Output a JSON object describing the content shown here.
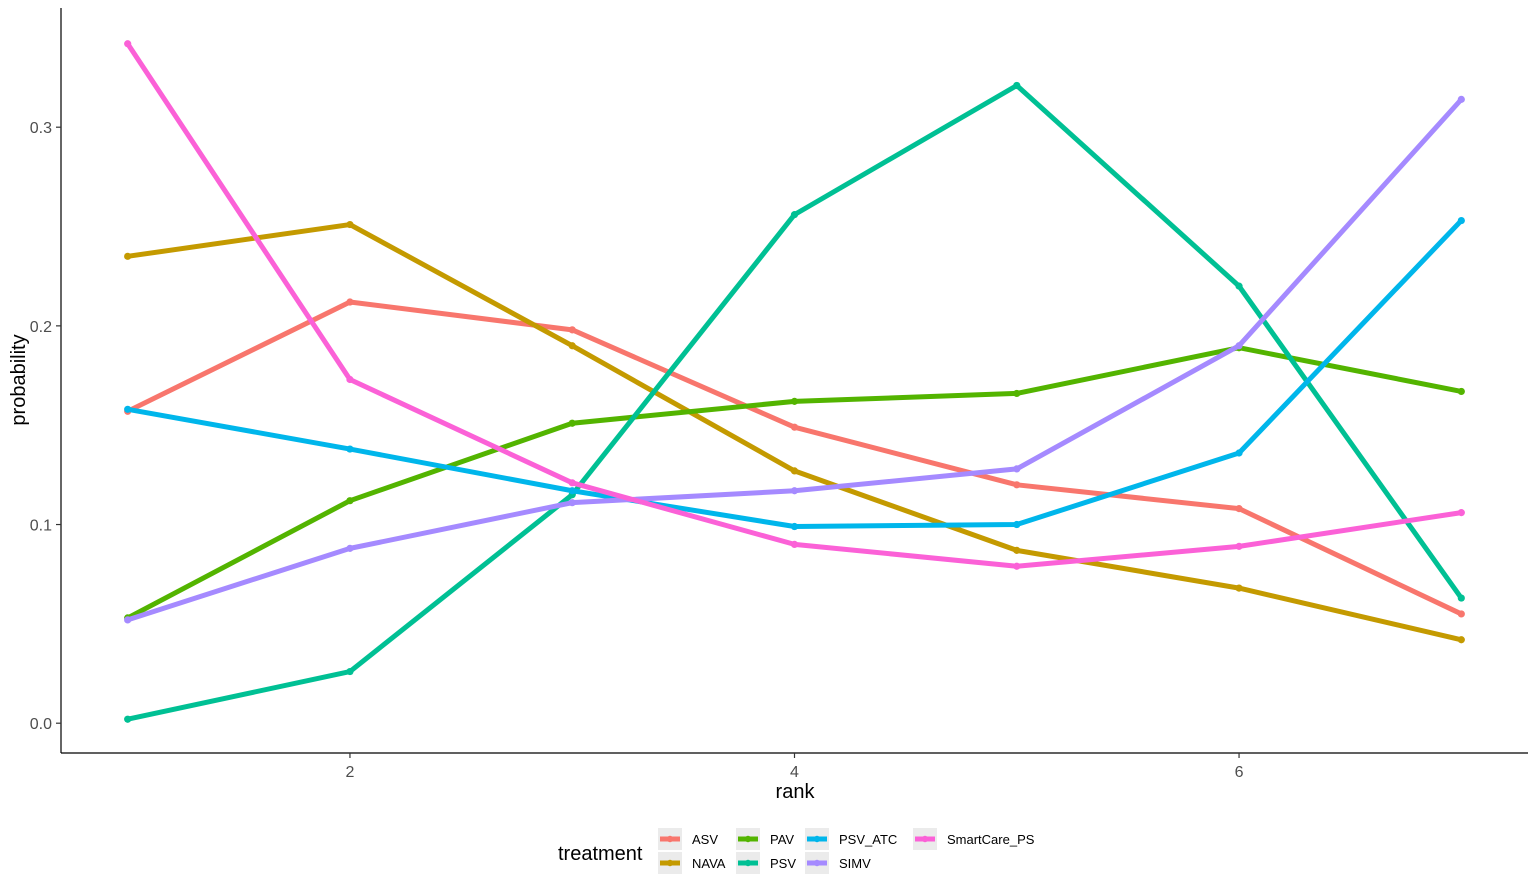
{
  "chart_data": {
    "type": "line",
    "xlabel": "rank",
    "ylabel": "probability",
    "x": [
      1,
      2,
      3,
      4,
      5,
      6,
      7
    ],
    "xlim": [
      0.7,
      7.3
    ],
    "ylim": [
      -0.015,
      0.36
    ],
    "x_ticks": [
      2,
      4,
      6
    ],
    "x_tick_labels": [
      "2",
      "4",
      "6"
    ],
    "y_ticks": [
      0.0,
      0.1,
      0.2,
      0.3
    ],
    "y_tick_labels": [
      "0.0",
      "0.1",
      "0.2",
      "0.3"
    ],
    "grid": false,
    "legend": {
      "title": "treatment",
      "position": "bottom",
      "order": [
        "ASV",
        "NAVA",
        "PAV",
        "PSV",
        "PSV_ATC",
        "SIMV",
        "SmartCare_PS"
      ]
    },
    "series": [
      {
        "name": "ASV",
        "color": "#F8766D",
        "values": [
          0.157,
          0.212,
          0.198,
          0.149,
          0.12,
          0.108,
          0.055
        ]
      },
      {
        "name": "NAVA",
        "color": "#C49A00",
        "values": [
          0.235,
          0.251,
          0.19,
          0.127,
          0.087,
          0.068,
          0.042
        ]
      },
      {
        "name": "PAV",
        "color": "#53B400",
        "values": [
          0.053,
          0.112,
          0.151,
          0.162,
          0.166,
          0.189,
          0.167
        ]
      },
      {
        "name": "PSV",
        "color": "#00C094",
        "values": [
          0.002,
          0.026,
          0.115,
          0.256,
          0.321,
          0.22,
          0.063
        ]
      },
      {
        "name": "PSV_ATC",
        "color": "#00B6EB",
        "values": [
          0.158,
          0.138,
          0.117,
          0.099,
          0.1,
          0.136,
          0.253
        ]
      },
      {
        "name": "SIMV",
        "color": "#A58AFF",
        "values": [
          0.052,
          0.088,
          0.111,
          0.117,
          0.128,
          0.19,
          0.314
        ]
      },
      {
        "name": "SmartCare_PS",
        "color": "#FB61D7",
        "values": [
          0.342,
          0.173,
          0.121,
          0.09,
          0.079,
          0.089,
          0.106
        ]
      }
    ]
  }
}
